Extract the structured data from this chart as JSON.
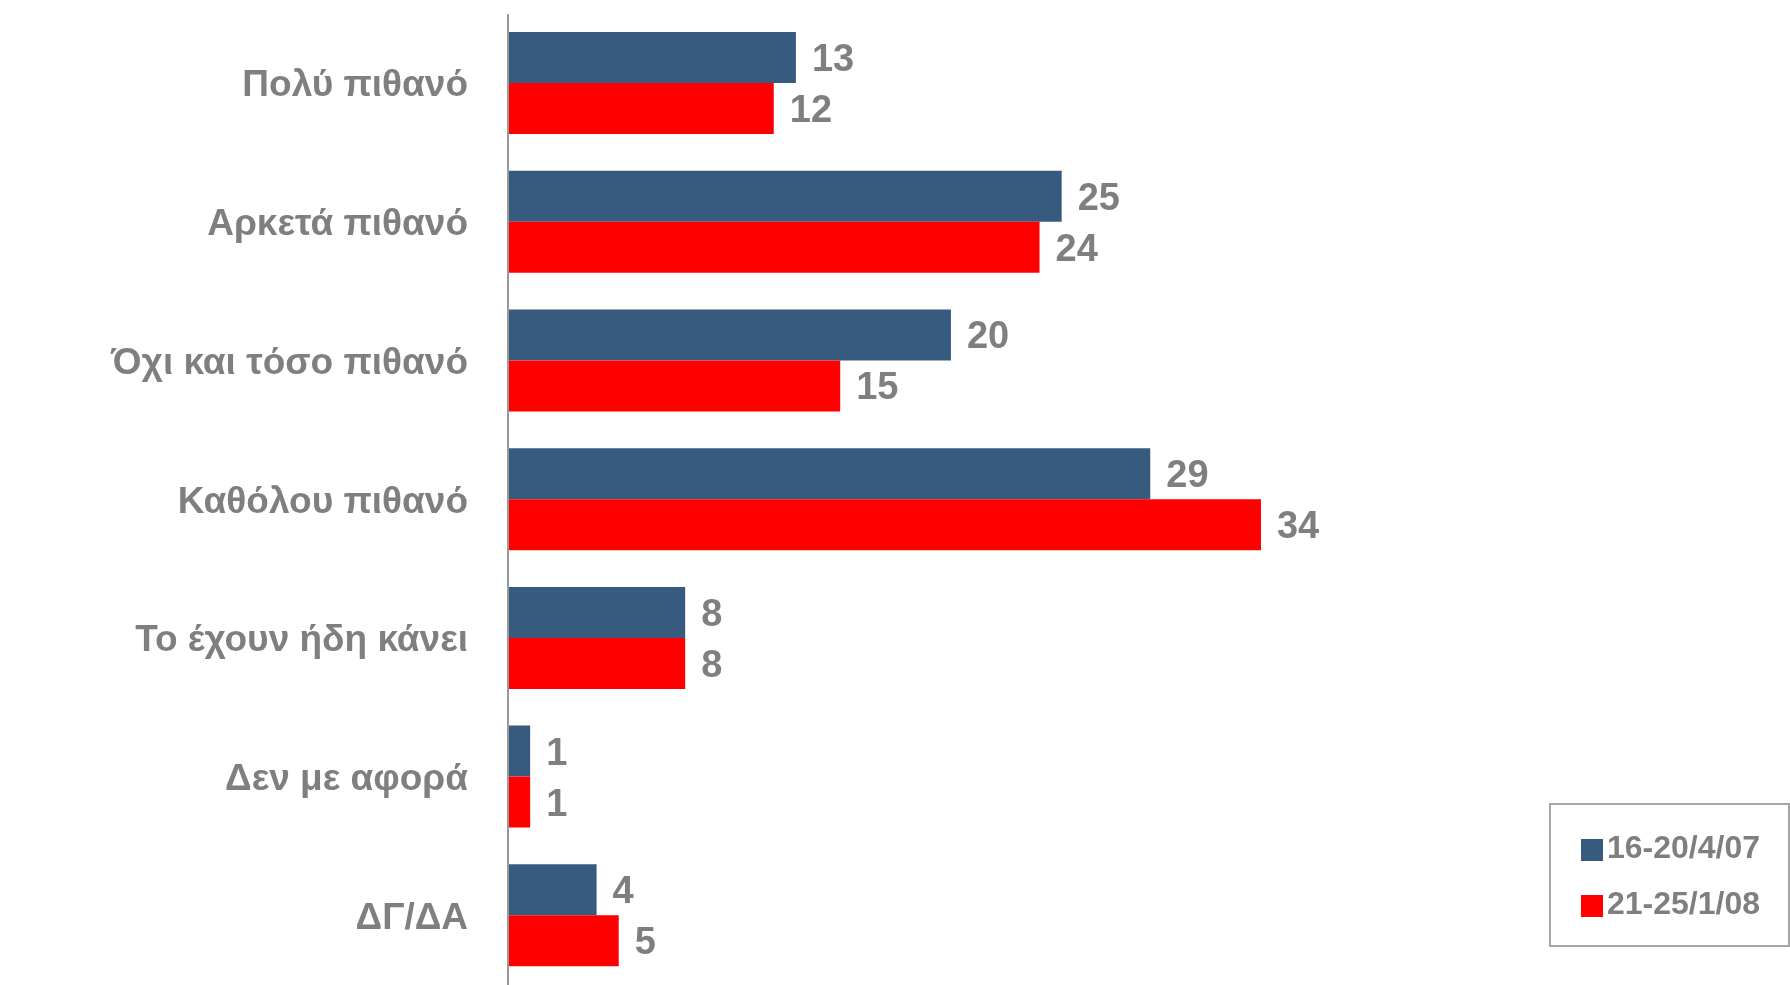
{
  "chart_data": {
    "type": "bar",
    "orientation": "horizontal",
    "categories": [
      "Πολύ πιθανό",
      "Αρκετά πιθανό",
      "Όχι και τόσο πιθανό",
      "Καθόλου πιθανό",
      "Το έχουν ήδη κάνει",
      "Δεν με αφορά",
      "ΔΓ/ΔΑ"
    ],
    "series": [
      {
        "name": "16-20/4/07",
        "color": "#375b7e",
        "values": [
          13,
          25,
          20,
          29,
          8,
          1,
          4
        ]
      },
      {
        "name": "21-25/1/08",
        "color": "#ff0000",
        "values": [
          12,
          24,
          15,
          34,
          8,
          1,
          5
        ]
      }
    ],
    "data_labels": true,
    "legend": "bottom right",
    "grid": false
  }
}
